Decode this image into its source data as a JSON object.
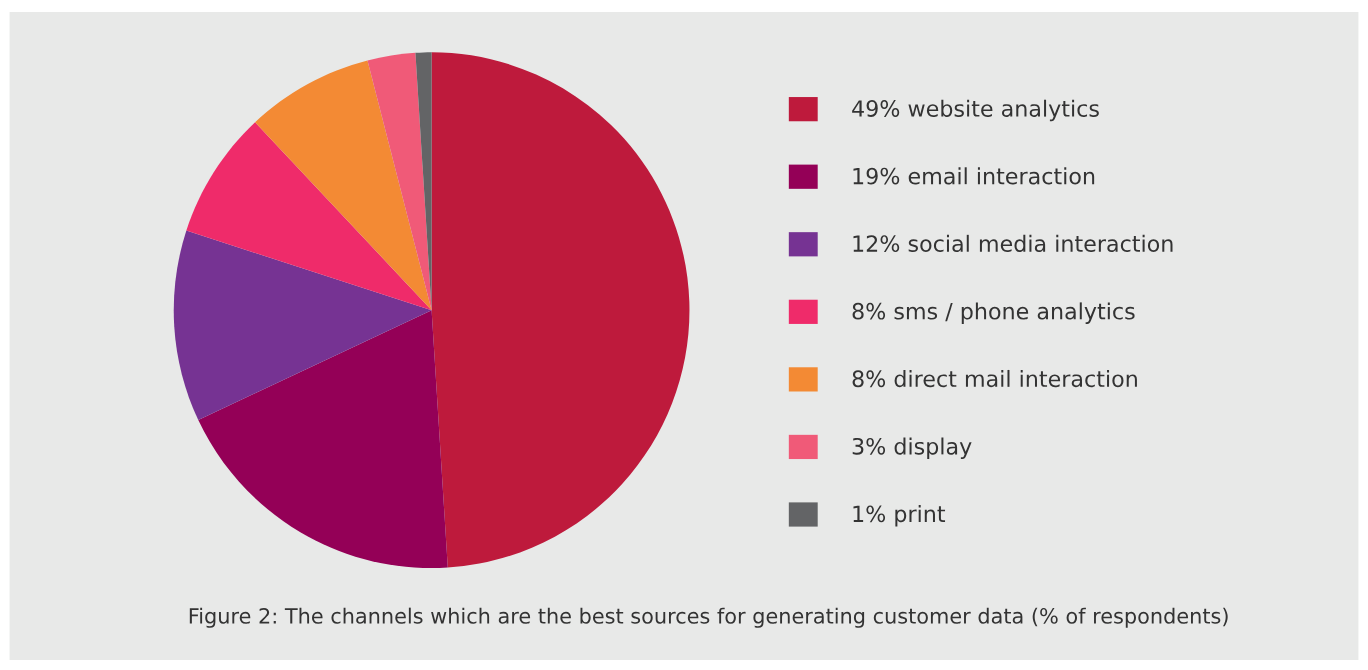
{
  "chart_data": {
    "type": "pie",
    "categories": [
      "49% website analytics",
      "19% email interaction",
      "12% social media interaction",
      "8% sms / phone analytics",
      "8% direct mail interaction",
      "3% display",
      "1% print"
    ],
    "values": [
      49,
      19,
      12,
      8,
      8,
      3,
      1
    ],
    "colors": [
      "#be1a3c",
      "#940057",
      "#763393",
      "#ef2b6a",
      "#f38a34",
      "#f05a78",
      "#636466"
    ],
    "legend": "right",
    "annotations": [
      "Figure 2: The channels which are the best sources for generating customer data (% of respondents)"
    ]
  }
}
